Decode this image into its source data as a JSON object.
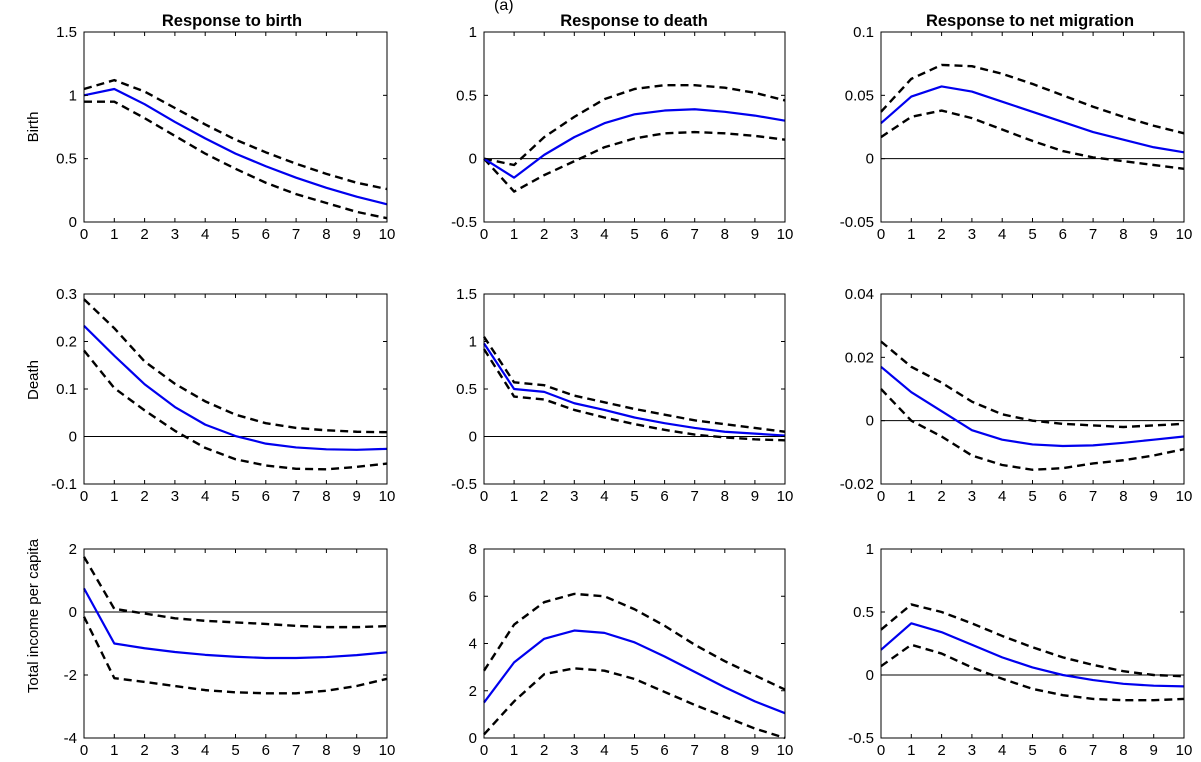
{
  "figure": {
    "header_fragment": "(a)",
    "column_titles": [
      "Response to birth",
      "Response to death",
      "Response to net migration"
    ],
    "row_labels": [
      "Birth",
      "Death",
      "Total income per capita"
    ]
  },
  "colors": {
    "irf": "#0000ee",
    "band": "#000000",
    "zero": "#000000"
  },
  "chart_data": [
    {
      "type": "line",
      "row": 0,
      "col": 0,
      "title": "Response to birth",
      "ylabel": "Birth",
      "xlim": [
        0,
        10
      ],
      "ylim": [
        0,
        1.5
      ],
      "x": [
        0,
        1,
        2,
        3,
        4,
        5,
        6,
        7,
        8,
        9,
        10
      ],
      "yticks": [
        0,
        0.5,
        1,
        1.5
      ],
      "ytick_labels": [
        "0",
        "0.5",
        "1",
        "1.5"
      ],
      "series": [
        {
          "role": "irf",
          "values": [
            1.0,
            1.05,
            0.93,
            0.79,
            0.66,
            0.54,
            0.44,
            0.35,
            0.27,
            0.2,
            0.14
          ]
        },
        {
          "role": "upper",
          "values": [
            1.05,
            1.12,
            1.03,
            0.9,
            0.77,
            0.65,
            0.55,
            0.46,
            0.38,
            0.31,
            0.26
          ]
        },
        {
          "role": "lower",
          "values": [
            0.95,
            0.95,
            0.82,
            0.68,
            0.54,
            0.42,
            0.31,
            0.22,
            0.15,
            0.08,
            0.03
          ]
        }
      ]
    },
    {
      "type": "line",
      "row": 0,
      "col": 1,
      "title": "Response to death",
      "ylabel": "",
      "xlim": [
        0,
        10
      ],
      "ylim": [
        -0.5,
        1
      ],
      "x": [
        0,
        1,
        2,
        3,
        4,
        5,
        6,
        7,
        8,
        9,
        10
      ],
      "yticks": [
        -0.5,
        0,
        0.5,
        1
      ],
      "ytick_labels": [
        "-0.5",
        "0",
        "0.5",
        "1"
      ],
      "series": [
        {
          "role": "irf",
          "values": [
            0,
            -0.15,
            0.03,
            0.17,
            0.28,
            0.35,
            0.38,
            0.39,
            0.37,
            0.34,
            0.3
          ]
        },
        {
          "role": "upper",
          "values": [
            0,
            -0.05,
            0.17,
            0.33,
            0.47,
            0.55,
            0.58,
            0.58,
            0.56,
            0.52,
            0.46
          ]
        },
        {
          "role": "lower",
          "values": [
            0,
            -0.26,
            -0.13,
            -0.02,
            0.09,
            0.16,
            0.2,
            0.21,
            0.2,
            0.18,
            0.15
          ]
        }
      ]
    },
    {
      "type": "line",
      "row": 0,
      "col": 2,
      "title": "Response to net migration",
      "ylabel": "",
      "xlim": [
        0,
        10
      ],
      "ylim": [
        -0.05,
        0.1
      ],
      "x": [
        0,
        1,
        2,
        3,
        4,
        5,
        6,
        7,
        8,
        9,
        10
      ],
      "yticks": [
        -0.05,
        0,
        0.05,
        0.1
      ],
      "ytick_labels": [
        "-0.05",
        "0",
        "0.05",
        "0.1"
      ],
      "series": [
        {
          "role": "irf",
          "values": [
            0.028,
            0.049,
            0.057,
            0.053,
            0.045,
            0.037,
            0.029,
            0.021,
            0.015,
            0.009,
            0.005
          ]
        },
        {
          "role": "upper",
          "values": [
            0.037,
            0.063,
            0.074,
            0.073,
            0.067,
            0.059,
            0.05,
            0.041,
            0.033,
            0.026,
            0.02
          ]
        },
        {
          "role": "lower",
          "values": [
            0.017,
            0.033,
            0.038,
            0.032,
            0.023,
            0.014,
            0.006,
            0.001,
            -0.002,
            -0.005,
            -0.008
          ]
        }
      ]
    },
    {
      "type": "line",
      "row": 1,
      "col": 0,
      "title": "",
      "ylabel": "Death",
      "xlim": [
        0,
        10
      ],
      "ylim": [
        -0.1,
        0.3
      ],
      "x": [
        0,
        1,
        2,
        3,
        4,
        5,
        6,
        7,
        8,
        9,
        10
      ],
      "yticks": [
        -0.1,
        0,
        0.1,
        0.2,
        0.3
      ],
      "ytick_labels": [
        "-0.1",
        "0",
        "0.1",
        "0.2",
        "0.3"
      ],
      "series": [
        {
          "role": "irf",
          "values": [
            0.233,
            0.17,
            0.11,
            0.062,
            0.025,
            0.001,
            -0.015,
            -0.023,
            -0.027,
            -0.028,
            -0.026
          ]
        },
        {
          "role": "upper",
          "values": [
            0.289,
            0.228,
            0.158,
            0.111,
            0.074,
            0.046,
            0.028,
            0.018,
            0.013,
            0.01,
            0.009
          ]
        },
        {
          "role": "lower",
          "values": [
            0.181,
            0.102,
            0.055,
            0.012,
            -0.024,
            -0.048,
            -0.061,
            -0.068,
            -0.069,
            -0.064,
            -0.057
          ]
        }
      ]
    },
    {
      "type": "line",
      "row": 1,
      "col": 1,
      "title": "",
      "ylabel": "",
      "xlim": [
        0,
        10
      ],
      "ylim": [
        -0.5,
        1.5
      ],
      "x": [
        0,
        1,
        2,
        3,
        4,
        5,
        6,
        7,
        8,
        9,
        10
      ],
      "yticks": [
        -0.5,
        0,
        0.5,
        1,
        1.5
      ],
      "ytick_labels": [
        "-0.5",
        "0",
        "0.5",
        "1",
        "1.5"
      ],
      "series": [
        {
          "role": "irf",
          "values": [
            0.98,
            0.5,
            0.47,
            0.35,
            0.28,
            0.2,
            0.14,
            0.09,
            0.05,
            0.03,
            0.01
          ]
        },
        {
          "role": "upper",
          "values": [
            1.05,
            0.57,
            0.54,
            0.43,
            0.36,
            0.29,
            0.23,
            0.17,
            0.13,
            0.09,
            0.05
          ]
        },
        {
          "role": "lower",
          "values": [
            0.92,
            0.42,
            0.39,
            0.28,
            0.2,
            0.13,
            0.07,
            0.02,
            -0.01,
            -0.03,
            -0.04
          ]
        }
      ]
    },
    {
      "type": "line",
      "row": 1,
      "col": 2,
      "title": "",
      "ylabel": "",
      "xlim": [
        0,
        10
      ],
      "ylim": [
        -0.02,
        0.04
      ],
      "x": [
        0,
        1,
        2,
        3,
        4,
        5,
        6,
        7,
        8,
        9,
        10
      ],
      "yticks": [
        -0.02,
        0,
        0.02,
        0.04
      ],
      "ytick_labels": [
        "-0.02",
        "0",
        "0.02",
        "0.04"
      ],
      "series": [
        {
          "role": "irf",
          "values": [
            0.017,
            0.009,
            0.003,
            -0.003,
            -0.006,
            -0.0075,
            -0.008,
            -0.0078,
            -0.007,
            -0.006,
            -0.005
          ]
        },
        {
          "role": "upper",
          "values": [
            0.025,
            0.017,
            0.012,
            0.006,
            0.002,
            0.0,
            -0.001,
            -0.0015,
            -0.002,
            -0.0015,
            -0.001
          ]
        },
        {
          "role": "lower",
          "values": [
            0.01,
            0.0,
            -0.005,
            -0.011,
            -0.014,
            -0.0155,
            -0.015,
            -0.0135,
            -0.0125,
            -0.011,
            -0.009
          ]
        }
      ]
    },
    {
      "type": "line",
      "row": 2,
      "col": 0,
      "title": "",
      "ylabel": "Total income per capita",
      "xlim": [
        0,
        10
      ],
      "ylim": [
        -4,
        2
      ],
      "x": [
        0,
        1,
        2,
        3,
        4,
        5,
        6,
        7,
        8,
        9,
        10
      ],
      "yticks": [
        -4,
        -2,
        0,
        2
      ],
      "ytick_labels": [
        "-4",
        "-2",
        "0",
        "2"
      ],
      "series": [
        {
          "role": "irf",
          "values": [
            0.75,
            -1.0,
            -1.15,
            -1.27,
            -1.36,
            -1.42,
            -1.46,
            -1.46,
            -1.43,
            -1.37,
            -1.28
          ]
        },
        {
          "role": "upper",
          "values": [
            1.75,
            0.1,
            -0.05,
            -0.2,
            -0.28,
            -0.33,
            -0.38,
            -0.44,
            -0.48,
            -0.48,
            -0.45
          ]
        },
        {
          "role": "lower",
          "values": [
            -0.15,
            -2.1,
            -2.22,
            -2.35,
            -2.48,
            -2.55,
            -2.58,
            -2.58,
            -2.5,
            -2.35,
            -2.12
          ]
        }
      ]
    },
    {
      "type": "line",
      "row": 2,
      "col": 1,
      "title": "",
      "ylabel": "",
      "xlim": [
        0,
        10
      ],
      "ylim": [
        0,
        8
      ],
      "x": [
        0,
        1,
        2,
        3,
        4,
        5,
        6,
        7,
        8,
        9,
        10
      ],
      "yticks": [
        0,
        2,
        4,
        6,
        8
      ],
      "ytick_labels": [
        "0",
        "2",
        "4",
        "6",
        "8"
      ],
      "series": [
        {
          "role": "irf",
          "values": [
            1.5,
            3.2,
            4.2,
            4.55,
            4.45,
            4.05,
            3.45,
            2.8,
            2.15,
            1.55,
            1.05
          ]
        },
        {
          "role": "upper",
          "values": [
            2.85,
            4.8,
            5.75,
            6.1,
            6.0,
            5.45,
            4.75,
            3.95,
            3.25,
            2.65,
            2.05
          ]
        },
        {
          "role": "lower",
          "values": [
            0.15,
            1.55,
            2.7,
            2.95,
            2.85,
            2.5,
            1.95,
            1.4,
            0.9,
            0.4,
            0.0
          ]
        }
      ]
    },
    {
      "type": "line",
      "row": 2,
      "col": 2,
      "title": "",
      "ylabel": "",
      "xlim": [
        0,
        10
      ],
      "ylim": [
        -0.5,
        1
      ],
      "x": [
        0,
        1,
        2,
        3,
        4,
        5,
        6,
        7,
        8,
        9,
        10
      ],
      "yticks": [
        -0.5,
        0,
        0.5,
        1
      ],
      "ytick_labels": [
        "-0.5",
        "0",
        "0.5",
        "1"
      ],
      "series": [
        {
          "role": "irf",
          "values": [
            0.2,
            0.41,
            0.34,
            0.24,
            0.14,
            0.06,
            0.0,
            -0.04,
            -0.07,
            -0.085,
            -0.09
          ]
        },
        {
          "role": "upper",
          "values": [
            0.36,
            0.56,
            0.5,
            0.41,
            0.31,
            0.22,
            0.14,
            0.08,
            0.03,
            0.0,
            -0.01
          ]
        },
        {
          "role": "lower",
          "values": [
            0.07,
            0.24,
            0.17,
            0.06,
            -0.03,
            -0.11,
            -0.16,
            -0.19,
            -0.2,
            -0.2,
            -0.19
          ]
        }
      ]
    }
  ]
}
